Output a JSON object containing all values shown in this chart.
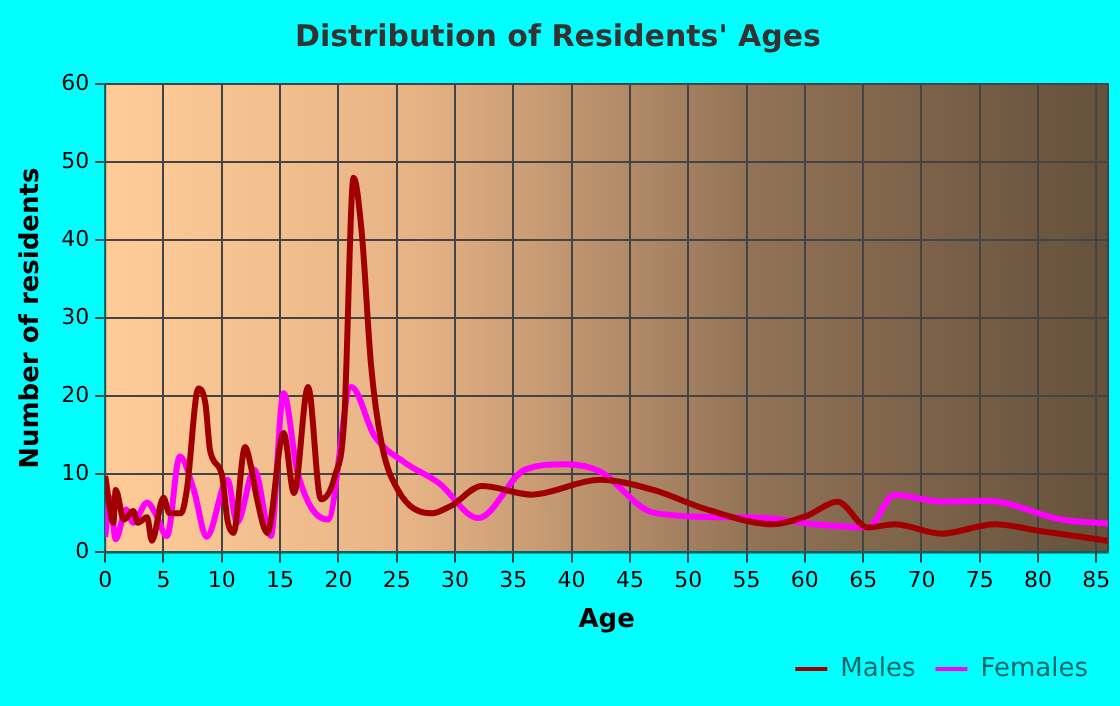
{
  "chart_data": {
    "type": "line",
    "title": "Distribution of Residents' Ages",
    "xlabel": "Age",
    "ylabel": "Number of residents",
    "xlim": [
      0,
      86
    ],
    "xticks": [
      0,
      5,
      10,
      15,
      20,
      25,
      30,
      35,
      40,
      45,
      50,
      55,
      60,
      65,
      70,
      75,
      80,
      85
    ],
    "ylim": [
      0,
      60
    ],
    "yticks": [
      0,
      10,
      20,
      30,
      40,
      50,
      60
    ],
    "grid": true,
    "legend": "bottom right",
    "marker": "none",
    "line_style": "solid",
    "series": [
      {
        "name": "Males",
        "color": "#a00000",
        "x": [
          0,
          0.7,
          0.9,
          1.6,
          2.4,
          2.8,
          3.6,
          4,
          5,
          5.5,
          6.5,
          7,
          8,
          8.6,
          9,
          10,
          10.5,
          11,
          12,
          12.5,
          13,
          13.9,
          15.3,
          16.2,
          17.4,
          18.5,
          19.7,
          20.5,
          21.3,
          22,
          22.8,
          23.7,
          25.1,
          28,
          29.7,
          32.3,
          36.6,
          42.4,
          47,
          51.6,
          57.3,
          60.2,
          62.8,
          65.4,
          67.7,
          71.7,
          76.3,
          80.3,
          86
        ],
        "values": [
          9.8,
          3.8,
          8,
          4.2,
          5.3,
          3.8,
          4.5,
          1.5,
          7,
          5,
          5,
          8,
          21,
          19,
          13,
          10,
          4,
          2.5,
          13.5,
          11,
          7,
          2.5,
          15.3,
          7.6,
          21.2,
          6.8,
          9.8,
          17,
          48,
          41,
          24,
          14,
          8,
          5,
          6,
          8.5,
          7.4,
          9.3,
          8,
          5.5,
          3.6,
          4.7,
          6.5,
          3.2,
          3.6,
          2.4,
          3.6,
          2.7,
          1.5
        ]
      },
      {
        "name": "Females",
        "color": "#ff00ff",
        "x": [
          0,
          0.4,
          0.9,
          1.8,
          2.4,
          3.6,
          4.3,
          5.3,
          6.4,
          7.6,
          8.7,
          10.5,
          11.3,
          12.8,
          14.2,
          15.3,
          16.5,
          19.1,
          21.1,
          23.1,
          25.7,
          28.6,
          32,
          36,
          39.5,
          42.4,
          47,
          53.3,
          56.7,
          60.8,
          65.4,
          67.7,
          71.7,
          75.7,
          82,
          86
        ],
        "values": [
          2,
          7,
          1.7,
          5.5,
          3.8,
          6.4,
          5,
          2.1,
          12.3,
          8,
          2,
          9.3,
          3.8,
          10.6,
          2.1,
          20.4,
          10.2,
          4.2,
          21.2,
          14.9,
          11.5,
          8.9,
          4.4,
          10.6,
          11.3,
          10.4,
          5.1,
          4.5,
          4.4,
          3.6,
          3.2,
          7.4,
          6.5,
          6.6,
          4.2,
          3.7
        ]
      }
    ]
  }
}
